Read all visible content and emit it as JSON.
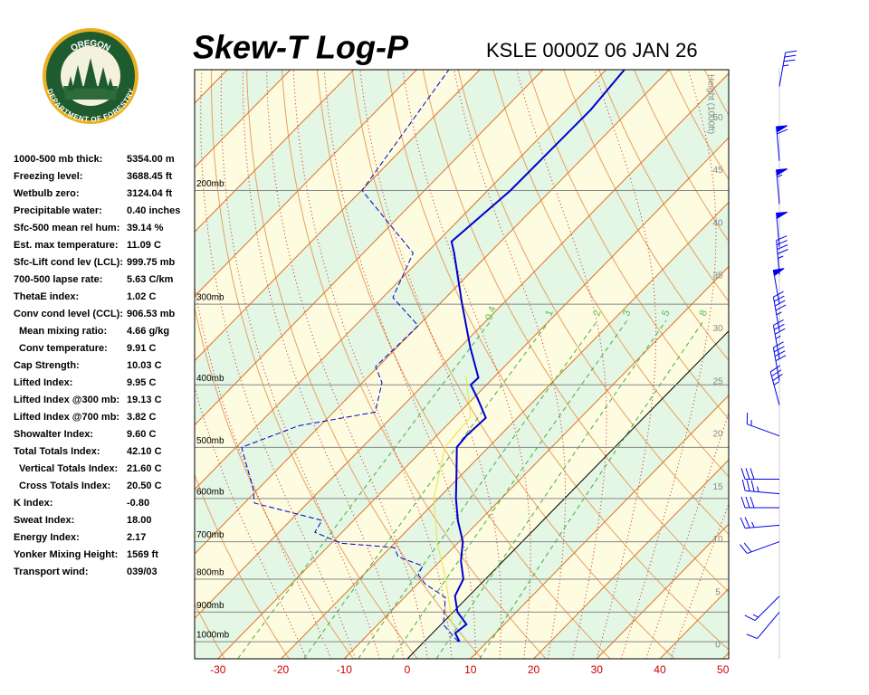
{
  "logo": {
    "top": "OREGON",
    "bottom": "DEPARTMENT OF FORESTRY"
  },
  "stats": [
    {
      "label": "1000-500 mb thick:",
      "value": "5354.00 m"
    },
    {
      "label": "Freezing level:",
      "value": "3688.45 ft"
    },
    {
      "label": "Wetbulb zero:",
      "value": "3124.04 ft"
    },
    {
      "label": "Precipitable water:",
      "value": "0.40 inches"
    },
    {
      "label": "Sfc-500 mean rel hum:",
      "value": "39.14 %"
    },
    {
      "label": "Est. max temperature:",
      "value": "11.09 C"
    },
    {
      "label": "Sfc-Lift cond lev (LCL):",
      "value": "999.75 mb"
    },
    {
      "label": "700-500 lapse rate:",
      "value": "5.63 C/km"
    },
    {
      "label": "ThetaE index:",
      "value": "1.02 C"
    },
    {
      "label": "Conv cond level (CCL):",
      "value": "906.53 mb"
    },
    {
      "label": "Mean mixing ratio:",
      "value": "4.66 g/kg",
      "indent": true
    },
    {
      "label": "Conv temperature:",
      "value": "9.91 C",
      "indent": true
    },
    {
      "label": "Cap Strength:",
      "value": "10.03 C"
    },
    {
      "label": "Lifted Index:",
      "value": "9.95 C"
    },
    {
      "label": "Lifted Index @300 mb:",
      "value": "19.13 C"
    },
    {
      "label": "Lifted Index @700 mb:",
      "value": "3.82 C"
    },
    {
      "label": "Showalter Index:",
      "value": "9.60 C"
    },
    {
      "label": "Total Totals Index:",
      "value": "42.10 C"
    },
    {
      "label": "Vertical Totals Index:",
      "value": "21.60 C",
      "indent": true
    },
    {
      "label": "Cross Totals Index:",
      "value": "20.50 C",
      "indent": true
    },
    {
      "label": "K Index:",
      "value": "-0.80"
    },
    {
      "label": "Sweat Index:",
      "value": "18.00"
    },
    {
      "label": "Energy Index:",
      "value": "2.17"
    },
    {
      "label": "Yonker Mixing Height:",
      "value": "1569 ft"
    },
    {
      "label": "Transport wind:",
      "value": "039/03"
    }
  ],
  "chart_data": {
    "type": "skewt",
    "title": "Skew-T Log-P",
    "subtitle": "KSLE 0000Z 06 JAN 26",
    "xlim": [
      -33.7,
      50.9
    ],
    "xticks": [
      -30,
      -20,
      -10,
      0,
      10,
      20,
      30,
      40,
      50
    ],
    "ylim": [
      1063,
      130
    ],
    "yticks": [
      {
        "value": 200,
        "label": "200mb"
      },
      {
        "value": 300,
        "label": "300mb"
      },
      {
        "value": 400,
        "label": "400mb"
      },
      {
        "value": 500,
        "label": "500mb"
      },
      {
        "value": 600,
        "label": "600mb"
      },
      {
        "value": 700,
        "label": "700mb"
      },
      {
        "value": 800,
        "label": "800mb"
      },
      {
        "value": 900,
        "label": "900mb"
      },
      {
        "value": 1000,
        "label": "1000mb"
      }
    ],
    "height_label": "Height (1000ft)",
    "height_ticks": [
      0,
      5,
      10,
      15,
      20,
      25,
      30,
      35,
      40,
      45,
      50
    ],
    "mixing_ratios": [
      0.4,
      1,
      2,
      3,
      5,
      8
    ],
    "series": [
      {
        "color": "#0000cc",
        "pressure": [
          1000,
          970,
          940,
          900,
          850,
          800,
          750,
          700,
          650,
          600,
          550,
          500,
          480,
          450,
          420,
          400,
          390,
          350,
          300,
          250,
          240,
          200,
          150,
          130
        ],
        "values": [
          5.6,
          3.6,
          4.0,
          0.7,
          -2.2,
          -3.5,
          -6.7,
          -9.4,
          -13.4,
          -17.2,
          -20.9,
          -25.0,
          -25.3,
          -25.0,
          -29.3,
          -32.5,
          -32.4,
          -38.4,
          -46.4,
          -55.6,
          -57.8,
          -56.4,
          -56.2,
          -57.1
        ]
      },
      {
        "color": "#0000cc",
        "pressure": [
          1000,
          941,
          854,
          814,
          788,
          763,
          739,
          715,
          704,
          677,
          649,
          610,
          580,
          500,
          463,
          441,
          397,
          375,
          324,
          293,
          250,
          200,
          130
        ],
        "values": [
          5.4,
          0.4,
          -3.5,
          -8.8,
          -11.3,
          -12.0,
          -17.3,
          -19.3,
          -28.4,
          -34.3,
          -35.0,
          -48.4,
          -50.8,
          -59.1,
          -53.4,
          -43.4,
          -46.9,
          -50.4,
          -50.0,
          -58.4,
          -62.1,
          -79.9,
          -84.9
        ]
      },
      {
        "color": "#e6e640",
        "pressure": [
          941,
          800,
          700,
          600,
          500,
          448,
          387
        ],
        "values": [
          1.8,
          -6.3,
          -13.5,
          -20.7,
          -26.9,
          -27.6,
          -34.7
        ]
      }
    ],
    "winds": {
      "pressure": [
        138,
        180,
        210,
        245,
        270,
        300,
        330,
        365,
        395,
        430,
        480,
        560,
        590,
        620,
        660,
        700,
        850,
        900
      ],
      "direction": [
        10,
        355,
        355,
        355,
        355,
        350,
        350,
        350,
        350,
        345,
        290,
        270,
        275,
        270,
        265,
        250,
        225,
        220
      ],
      "speed": [
        35,
        60,
        55,
        50,
        45,
        50,
        45,
        35,
        40,
        35,
        15,
        30,
        35,
        30,
        25,
        20,
        15,
        10
      ],
      "color": "#0000ee"
    }
  }
}
